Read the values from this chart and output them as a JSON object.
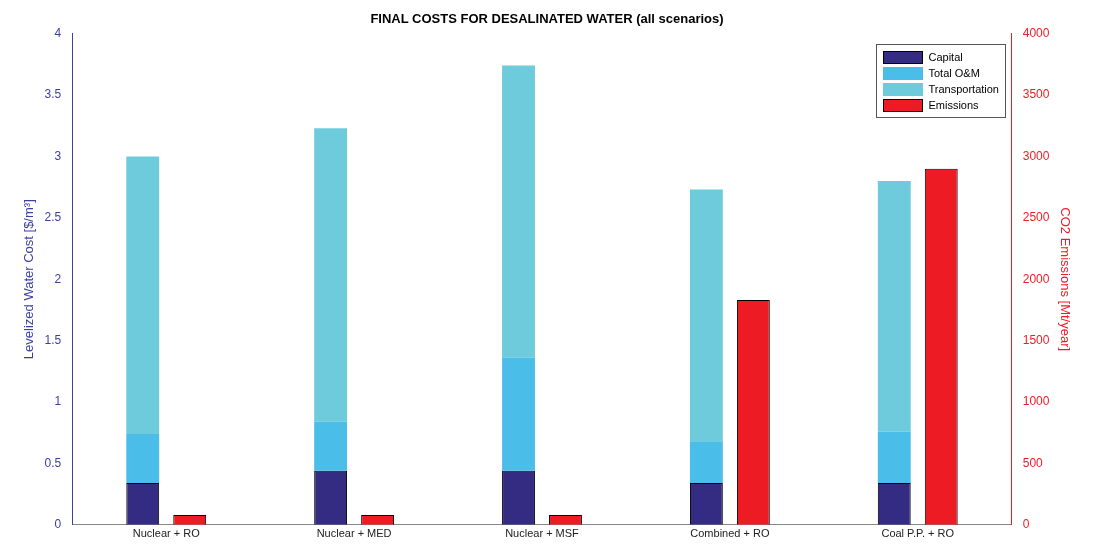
{
  "chart_data": {
    "type": "bar",
    "title": "FINAL COSTS FOR DESALINATED WATER (all scenarios)",
    "ylabel": "Levelized Water Cost [$/m³]",
    "y2label": "CO2 Emissions [Mt/year]",
    "categories": [
      "Nuclear + RO",
      "Nuclear + MED",
      "Nuclear + MSF",
      "Combined + RO",
      "Coal P.P. + RO"
    ],
    "stacked": true,
    "series": [
      {
        "name": "Capital",
        "color": "#332c82",
        "values": [
          0.34,
          0.44,
          0.44,
          0.34,
          0.34
        ]
      },
      {
        "name": "Total O&M",
        "color": "#4bbde9",
        "values": [
          0.4,
          0.4,
          0.92,
          0.34,
          0.42
        ]
      },
      {
        "name": "Transportation",
        "color": "#6ecbdc",
        "values": [
          2.26,
          2.39,
          2.38,
          2.05,
          2.04
        ]
      },
      {
        "name": "Emissions",
        "color": "#ed1c24",
        "axis": "y2",
        "values": [
          80,
          80,
          80,
          1830,
          2900
        ]
      }
    ],
    "ylim": [
      0,
      4
    ],
    "yticks": [
      0,
      0.5,
      1,
      1.5,
      2,
      2.5,
      3,
      3.5,
      4
    ],
    "y2lim": [
      0,
      4000
    ],
    "y2ticks": [
      0,
      500,
      1000,
      1500,
      2000,
      2500,
      3000,
      3500,
      4000
    ],
    "grid": false,
    "legend": "top right"
  }
}
